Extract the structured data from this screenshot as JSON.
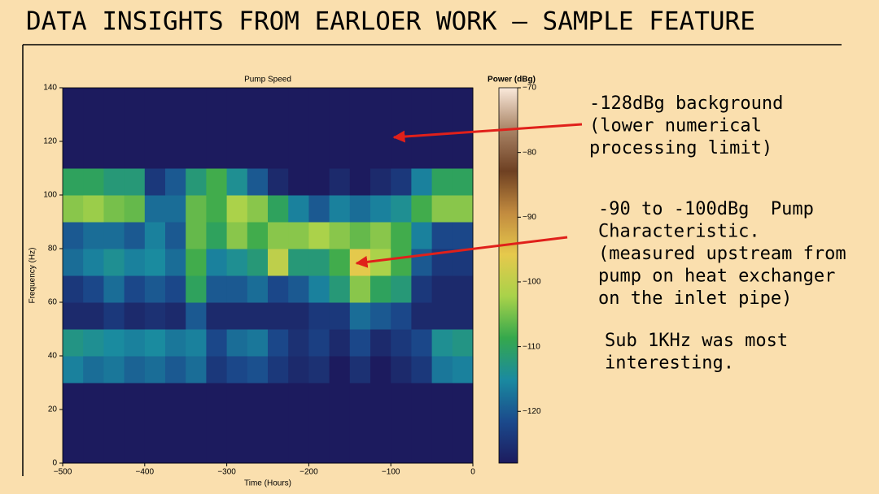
{
  "title": "DATA INSIGHTS FROM EARLOER WORK – SAMPLE FEATURE",
  "annotations": [
    [
      "-128dBg background",
      "(lower numerical",
      "processing limit)"
    ],
    [
      "-90 to -100dBg  Pump",
      "Characteristic.",
      "(measured upstream from",
      "pump on heat exchanger",
      "on the inlet pipe)"
    ],
    [
      "Sub 1KHz was most",
      "interesting."
    ]
  ],
  "chart_data": {
    "type": "heatmap",
    "title": "Pump Speed",
    "xlabel": "Time (Hours)",
    "ylabel": "Frequency (Hz)",
    "colorbar_label": "Power (dBg)",
    "xbins": [
      -500,
      -475,
      -450,
      -425,
      -400,
      -375,
      -350,
      -325,
      -300,
      -275,
      -250,
      -225,
      -200,
      -175,
      -150,
      -125,
      -100,
      -75,
      -50,
      -25,
      0
    ],
    "ybins": [
      0,
      10,
      20,
      30,
      40,
      50,
      60,
      70,
      80,
      90,
      100,
      110,
      120,
      130,
      140
    ],
    "values": [
      [
        -128,
        -128,
        -128,
        -128,
        -128,
        -128,
        -128,
        -128,
        -128,
        -128,
        -128,
        -128,
        -128,
        -128,
        -128,
        -128,
        -128,
        -128,
        -128,
        -128
      ],
      [
        -128,
        -128,
        -128,
        -128,
        -128,
        -128,
        -128,
        -128,
        -128,
        -128,
        -128,
        -128,
        -128,
        -128,
        -128,
        -128,
        -128,
        -128,
        -128,
        -128
      ],
      [
        -128,
        -128,
        -128,
        -128,
        -128,
        -128,
        -128,
        -128,
        -128,
        -128,
        -128,
        -128,
        -128,
        -128,
        -128,
        -128,
        -128,
        -128,
        -128,
        -128
      ],
      [
        -116,
        -118,
        -117,
        -119,
        -118,
        -120,
        -118,
        -124,
        -122,
        -121,
        -124,
        -126,
        -125,
        -128,
        -125,
        -128,
        -126,
        -124,
        -117,
        -116
      ],
      [
        -113,
        -114,
        -115,
        -116,
        -115,
        -117,
        -116,
        -122,
        -118,
        -117,
        -122,
        -125,
        -123,
        -126,
        -122,
        -126,
        -124,
        -122,
        -114,
        -113
      ],
      [
        -126,
        -126,
        -124,
        -126,
        -125,
        -126,
        -120,
        -126,
        -126,
        -126,
        -126,
        -126,
        -124,
        -124,
        -118,
        -120,
        -122,
        -126,
        -126,
        -126
      ],
      [
        -124,
        -122,
        -118,
        -122,
        -120,
        -122,
        -110,
        -120,
        -120,
        -118,
        -122,
        -120,
        -116,
        -112,
        -104,
        -110,
        -112,
        -124,
        -126,
        -126
      ],
      [
        -118,
        -116,
        -114,
        -116,
        -115,
        -118,
        -108,
        -116,
        -114,
        -112,
        -100,
        -112,
        -112,
        -108,
        -96,
        -102,
        -108,
        -120,
        -124,
        -124
      ],
      [
        -120,
        -118,
        -118,
        -120,
        -116,
        -120,
        -106,
        -110,
        -104,
        -108,
        -104,
        -104,
        -102,
        -104,
        -106,
        -104,
        -108,
        -116,
        -122,
        -122
      ],
      [
        -104,
        -103,
        -105,
        -106,
        -118,
        -118,
        -106,
        -108,
        -102,
        -104,
        -110,
        -116,
        -120,
        -116,
        -118,
        -116,
        -114,
        -108,
        -104,
        -104
      ],
      [
        -110,
        -110,
        -112,
        -112,
        -124,
        -120,
        -112,
        -108,
        -114,
        -120,
        -126,
        -128,
        -128,
        -126,
        -128,
        -126,
        -124,
        -116,
        -110,
        -110
      ],
      [
        -128,
        -128,
        -128,
        -128,
        -128,
        -128,
        -128,
        -128,
        -128,
        -128,
        -128,
        -128,
        -128,
        -128,
        -128,
        -128,
        -128,
        -128,
        -128,
        -128
      ],
      [
        -128,
        -128,
        -128,
        -128,
        -128,
        -128,
        -128,
        -128,
        -128,
        -128,
        -128,
        -128,
        -128,
        -128,
        -128,
        -128,
        -128,
        -128,
        -128,
        -128
      ],
      [
        -128,
        -128,
        -128,
        -128,
        -128,
        -128,
        -128,
        -128,
        -128,
        -128,
        -128,
        -128,
        -128,
        -128,
        -128,
        -128,
        -128,
        -128,
        -128,
        -128
      ]
    ],
    "xlim": [
      -500,
      0
    ],
    "ylim": [
      0,
      140
    ],
    "xticks": [
      {
        "value": -500,
        "label": "−500"
      },
      {
        "value": -400,
        "label": "−400"
      },
      {
        "value": -300,
        "label": "−300"
      },
      {
        "value": -200,
        "label": "−200"
      },
      {
        "value": -100,
        "label": "−100"
      },
      0
    ],
    "yticks": [
      0,
      20,
      40,
      60,
      80,
      100,
      120,
      140
    ],
    "clim": [
      -128,
      -70
    ],
    "cticks": [
      {
        "value": -70,
        "label": "−70"
      },
      {
        "value": -80,
        "label": "−80"
      },
      {
        "value": -90,
        "label": "−90"
      },
      {
        "value": -100,
        "label": "−100"
      },
      {
        "value": -110,
        "label": "−110"
      },
      {
        "value": -120,
        "label": "−120"
      }
    ],
    "colormap": [
      "#1c1b5e",
      "#1b4a8c",
      "#1a8aa0",
      "#35a84c",
      "#a9d24a",
      "#e6c94c",
      "#c28b3f",
      "#6e4022",
      "#a98466",
      "#fbeadb"
    ]
  }
}
